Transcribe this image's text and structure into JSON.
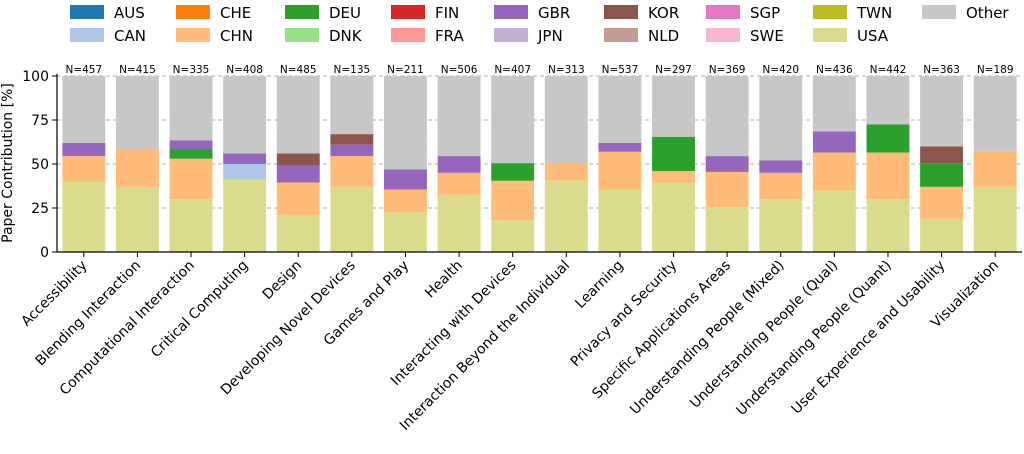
{
  "chart_data": {
    "type": "bar",
    "stacked": true,
    "ylabel": "Paper Contribution [%]",
    "ylim": [
      0,
      100
    ],
    "yticks": [
      0,
      25,
      50,
      75,
      100
    ],
    "grid": "y-dashed",
    "legend_placement": "top",
    "categories": [
      "Accessibility",
      "Blending Interaction",
      "Computational Interaction",
      "Critical Computing",
      "Design",
      "Developing Novel Devices",
      "Games and Play",
      "Health",
      "Interacting with Devices",
      "Interaction Beyond the Individual",
      "Learning",
      "Privacy and Security",
      "Specific Applications Areas",
      "Understanding People (Mixed)",
      "Understanding People (Qual)",
      "Understanding People (Quant)",
      "User Experience and Usability",
      "Visualization"
    ],
    "n_labels": [
      "N=457",
      "N=415",
      "N=335",
      "N=408",
      "N=485",
      "N=135",
      "N=211",
      "N=506",
      "N=407",
      "N=313",
      "N=537",
      "N=297",
      "N=369",
      "N=420",
      "N=436",
      "N=442",
      "N=363",
      "N=189"
    ],
    "series": [
      {
        "name": "USA",
        "color": "#dbdb8d",
        "values": [
          40,
          36.5,
          30,
          41,
          21,
          37,
          22.5,
          32,
          18,
          40.5,
          35.5,
          39.5,
          25.5,
          30,
          35,
          30,
          18.5,
          36.5
        ]
      },
      {
        "name": "TWN",
        "color": "#bcbd22",
        "values": [
          0,
          0,
          0,
          0,
          0,
          0,
          0,
          0,
          0,
          0,
          0,
          0,
          0,
          0,
          0,
          0,
          0,
          0
        ]
      },
      {
        "name": "CHN",
        "color": "#ffbb78",
        "values": [
          14.5,
          21.5,
          23,
          0,
          18.5,
          17.5,
          13,
          13,
          22.5,
          9.5,
          21.5,
          6.5,
          20,
          15,
          21.5,
          26.5,
          18.5,
          21
        ]
      },
      {
        "name": "CAN",
        "color": "#aec7e8",
        "values": [
          0,
          0,
          0,
          9,
          0,
          0,
          0,
          0,
          0,
          0,
          0,
          0,
          0,
          0,
          0,
          0,
          0,
          0
        ]
      },
      {
        "name": "DEU",
        "color": "#2ca02c",
        "values": [
          0,
          0,
          5.5,
          0,
          0,
          0,
          0,
          0,
          10,
          0,
          0,
          19.5,
          0,
          0,
          0,
          16,
          13.5,
          0
        ]
      },
      {
        "name": "GBR",
        "color": "#9467bd",
        "values": [
          7.5,
          0,
          5,
          6,
          9.5,
          6.5,
          11.5,
          9.5,
          0,
          0,
          5,
          0,
          9,
          7,
          12,
          0,
          0,
          0
        ]
      },
      {
        "name": "KOR",
        "color": "#8c564b",
        "values": [
          0,
          0,
          0,
          0,
          7,
          6,
          0,
          0,
          0,
          0,
          0,
          0,
          0,
          0,
          0,
          0,
          9.5,
          0
        ]
      },
      {
        "name": "Other",
        "color": "#c7c7c7",
        "values": [
          38,
          42,
          36.5,
          44,
          44,
          33,
          53,
          45.5,
          49.5,
          50,
          38,
          34.5,
          45.5,
          48,
          31.5,
          27.5,
          40,
          42.5
        ]
      }
    ]
  },
  "legend": [
    {
      "label": "AUS",
      "color": "#1f77b4"
    },
    {
      "label": "CAN",
      "color": "#aec7e8"
    },
    {
      "label": "CHE",
      "color": "#ff7f0e"
    },
    {
      "label": "CHN",
      "color": "#ffbb78"
    },
    {
      "label": "DEU",
      "color": "#2ca02c"
    },
    {
      "label": "DNK",
      "color": "#98df8a"
    },
    {
      "label": "FIN",
      "color": "#d62728"
    },
    {
      "label": "FRA",
      "color": "#ff9896"
    },
    {
      "label": "GBR",
      "color": "#9467bd"
    },
    {
      "label": "JPN",
      "color": "#c5b0d5"
    },
    {
      "label": "KOR",
      "color": "#8c564b"
    },
    {
      "label": "NLD",
      "color": "#c49c94"
    },
    {
      "label": "SGP",
      "color": "#e377c2"
    },
    {
      "label": "SWE",
      "color": "#f7b6d2"
    },
    {
      "label": "TWN",
      "color": "#bcbd22"
    },
    {
      "label": "USA",
      "color": "#dbdb8d"
    },
    {
      "label": "Other",
      "color": "#c7c7c7"
    }
  ]
}
